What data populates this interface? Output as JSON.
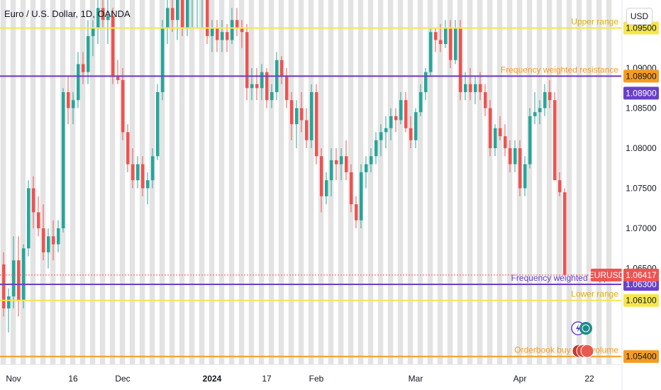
{
  "symbol": "Euro / U.S. Dollar, 1D, OANDA",
  "currency": "USD",
  "colors": {
    "up": "#26a69a",
    "down": "#ef5350",
    "stripe": "#d9d9d9",
    "yellow_line": "#f6e64a",
    "orange_line": "#f59b20",
    "purple_line": "#6a3fc9"
  },
  "chart_data": {
    "type": "candlestick",
    "y_axis": {
      "ylim": [
        1.053,
        1.0985
      ],
      "ticks": [
        "1.06500",
        "1.07000",
        "1.07500",
        "1.08000",
        "1.08500",
        "1.09000",
        "1.09500"
      ]
    },
    "x_axis": {
      "tick_labels": [
        {
          "label": "Nov",
          "index": 2
        },
        {
          "label": "16",
          "index": 14
        },
        {
          "label": "Dec",
          "index": 24
        },
        {
          "label": "2024",
          "index": 42
        },
        {
          "label": "17",
          "index": 53
        },
        {
          "label": "Feb",
          "index": 63
        },
        {
          "label": "Mar",
          "index": 83
        },
        {
          "label": "Apr",
          "index": 104
        },
        {
          "label": "22",
          "index": 118
        }
      ]
    },
    "levels": [
      {
        "name": "Upper range",
        "value": 1.095,
        "color": "#f6e64a",
        "badge": "1.09500",
        "label": "Upper range"
      },
      {
        "name": "Frequency weighted resistance",
        "value": 1.089,
        "color": "#f59b20",
        "badge": "1.08900",
        "label": "Frequency weighted resistance"
      },
      {
        "name": "Frequency weighted resistance",
        "value": 1.089,
        "color": "#6a3fc9",
        "badge": "1.08900",
        "label": ""
      },
      {
        "name": "Frequency weighted support",
        "value": 1.063,
        "color": "#6a3fc9",
        "badge": "1.06300",
        "label": "Frequency weighted support"
      },
      {
        "name": "Lower range",
        "value": 1.061,
        "color": "#f6e64a",
        "badge": "1.06100",
        "label": "Lower range"
      },
      {
        "name": "Orderbook buy side volume",
        "value": 1.054,
        "color": "#f59b20",
        "badge": "1.05400",
        "label": "Orderbook buy side volume"
      }
    ],
    "price": {
      "label": "EURUSD",
      "value": "1.06417",
      "numeric": 1.06417
    },
    "ohlc": [
      [
        1.0655,
        1.067,
        1.059,
        1.06
      ],
      [
        1.06,
        1.0625,
        1.057,
        1.0615
      ],
      [
        1.0615,
        1.069,
        1.06,
        1.066
      ],
      [
        1.066,
        1.069,
        1.059,
        1.061
      ],
      [
        1.061,
        1.068,
        1.06,
        1.0675
      ],
      [
        1.0675,
        1.076,
        1.0665,
        1.075
      ],
      [
        1.075,
        1.0765,
        1.07,
        1.072
      ],
      [
        1.072,
        1.074,
        1.069,
        1.07
      ],
      [
        1.07,
        1.073,
        1.066,
        1.067
      ],
      [
        1.067,
        1.07,
        1.065,
        1.069
      ],
      [
        1.069,
        1.071,
        1.066,
        1.068
      ],
      [
        1.068,
        1.071,
        1.067,
        1.07
      ],
      [
        1.07,
        1.0875,
        1.0695,
        1.087
      ],
      [
        1.087,
        1.089,
        1.083,
        1.085
      ],
      [
        1.085,
        1.087,
        1.083,
        1.086
      ],
      [
        1.086,
        1.092,
        1.085,
        1.0905
      ],
      [
        1.0905,
        1.092,
        1.088,
        1.0895
      ],
      [
        1.0895,
        1.096,
        1.088,
        1.094
      ],
      [
        1.094,
        1.096,
        1.0915,
        1.095
      ],
      [
        1.095,
        1.0985,
        1.093,
        1.0975
      ],
      [
        1.0975,
        1.099,
        1.095,
        1.096
      ],
      [
        1.096,
        1.0985,
        1.093,
        1.0965
      ],
      [
        1.0965,
        1.0975,
        1.088,
        1.089
      ],
      [
        1.089,
        1.091,
        1.088,
        1.0885
      ],
      [
        1.0885,
        1.09,
        1.081,
        1.082
      ],
      [
        1.082,
        1.083,
        1.077,
        1.078
      ],
      [
        1.078,
        1.08,
        1.075,
        1.076
      ],
      [
        1.076,
        1.079,
        1.075,
        1.078
      ],
      [
        1.078,
        1.079,
        1.074,
        1.075
      ],
      [
        1.075,
        1.077,
        1.073,
        1.076
      ],
      [
        1.076,
        1.08,
        1.075,
        1.079
      ],
      [
        1.079,
        1.088,
        1.0785,
        1.087
      ],
      [
        1.087,
        1.096,
        1.086,
        1.095
      ],
      [
        1.095,
        1.099,
        1.093,
        1.0975
      ],
      [
        1.0975,
        1.099,
        1.0945,
        1.096
      ],
      [
        1.096,
        1.0995,
        1.0935,
        1.0985
      ],
      [
        1.0985,
        1.0995,
        1.094,
        1.095
      ],
      [
        1.095,
        1.099,
        1.094,
        1.0985
      ],
      [
        1.0985,
        1.0995,
        1.095,
        1.099
      ],
      [
        1.099,
        1.0995,
        1.095,
        1.099
      ],
      [
        1.099,
        1.0995,
        1.095,
        1.099
      ],
      [
        1.099,
        1.0995,
        1.093,
        1.094
      ],
      [
        1.094,
        1.096,
        1.092,
        1.095
      ],
      [
        1.095,
        1.096,
        1.092,
        1.0935
      ],
      [
        1.0935,
        1.096,
        1.092,
        1.0945
      ],
      [
        1.0945,
        1.0955,
        1.092,
        1.0935
      ],
      [
        1.0935,
        1.0975,
        1.093,
        1.096
      ],
      [
        1.096,
        1.0975,
        1.094,
        1.095
      ],
      [
        1.095,
        1.096,
        1.0925,
        1.0945
      ],
      [
        1.0945,
        1.0955,
        1.086,
        1.0875
      ],
      [
        1.0875,
        1.09,
        1.086,
        1.088
      ],
      [
        1.088,
        1.09,
        1.086,
        1.0875
      ],
      [
        1.0875,
        1.0905,
        1.086,
        1.0895
      ],
      [
        1.0895,
        1.09,
        1.085,
        1.086
      ],
      [
        1.086,
        1.088,
        1.085,
        1.087
      ],
      [
        1.087,
        1.092,
        1.086,
        1.091
      ],
      [
        1.091,
        1.0915,
        1.088,
        1.089
      ],
      [
        1.089,
        1.09,
        1.085,
        1.086
      ],
      [
        1.086,
        1.087,
        1.081,
        1.083
      ],
      [
        1.083,
        1.086,
        1.08,
        1.085
      ],
      [
        1.085,
        1.087,
        1.082,
        1.0835
      ],
      [
        1.0835,
        1.085,
        1.08,
        1.081
      ],
      [
        1.081,
        1.088,
        1.08,
        1.087
      ],
      [
        1.087,
        1.088,
        1.078,
        1.079
      ],
      [
        1.079,
        1.08,
        1.072,
        1.074
      ],
      [
        1.074,
        1.077,
        1.073,
        1.076
      ],
      [
        1.076,
        1.08,
        1.074,
        1.0785
      ],
      [
        1.0785,
        1.08,
        1.076,
        1.078
      ],
      [
        1.078,
        1.08,
        1.076,
        1.079
      ],
      [
        1.079,
        1.081,
        1.076,
        1.077
      ],
      [
        1.077,
        1.078,
        1.072,
        1.073
      ],
      [
        1.073,
        1.074,
        1.07,
        1.071
      ],
      [
        1.071,
        1.078,
        1.07,
        1.077
      ],
      [
        1.077,
        1.079,
        1.075,
        1.078
      ],
      [
        1.078,
        1.08,
        1.077,
        1.079
      ],
      [
        1.079,
        1.082,
        1.078,
        1.081
      ],
      [
        1.081,
        1.083,
        1.079,
        1.082
      ],
      [
        1.082,
        1.084,
        1.08,
        1.0825
      ],
      [
        1.0825,
        1.085,
        1.081,
        1.084
      ],
      [
        1.084,
        1.085,
        1.082,
        1.0835
      ],
      [
        1.0835,
        1.087,
        1.083,
        1.086
      ],
      [
        1.086,
        1.087,
        1.082,
        1.0825
      ],
      [
        1.0825,
        1.084,
        1.08,
        1.081
      ],
      [
        1.081,
        1.085,
        1.08,
        1.0845
      ],
      [
        1.0845,
        1.088,
        1.084,
        1.087
      ],
      [
        1.087,
        1.09,
        1.086,
        1.0895
      ],
      [
        1.0895,
        1.095,
        1.089,
        1.0945
      ],
      [
        1.0945,
        1.095,
        1.092,
        1.0935
      ],
      [
        1.0935,
        1.0955,
        1.092,
        1.093
      ],
      [
        1.093,
        1.096,
        1.0925,
        1.095
      ],
      [
        1.095,
        1.096,
        1.09,
        1.091
      ],
      [
        1.091,
        1.096,
        1.0905,
        1.095
      ],
      [
        1.095,
        1.096,
        1.086,
        1.087
      ],
      [
        1.087,
        1.0895,
        1.086,
        1.088
      ],
      [
        1.088,
        1.09,
        1.086,
        1.087
      ],
      [
        1.087,
        1.089,
        1.0855,
        1.088
      ],
      [
        1.088,
        1.0895,
        1.086,
        1.087
      ],
      [
        1.087,
        1.088,
        1.084,
        1.085
      ],
      [
        1.085,
        1.086,
        1.079,
        1.08
      ],
      [
        1.08,
        1.083,
        1.079,
        1.0825
      ],
      [
        1.0825,
        1.084,
        1.081,
        1.0815
      ],
      [
        1.0815,
        1.083,
        1.079,
        1.08
      ],
      [
        1.08,
        1.081,
        1.077,
        1.078
      ],
      [
        1.078,
        1.081,
        1.077,
        1.08
      ],
      [
        1.08,
        1.081,
        1.074,
        1.075
      ],
      [
        1.075,
        1.079,
        1.074,
        1.078
      ],
      [
        1.078,
        1.085,
        1.0775,
        1.084
      ],
      [
        1.084,
        1.087,
        1.083,
        1.0845
      ],
      [
        1.0845,
        1.086,
        1.083,
        1.085
      ],
      [
        1.085,
        1.088,
        1.084,
        1.087
      ],
      [
        1.087,
        1.0885,
        1.085,
        1.086
      ],
      [
        1.086,
        1.087,
        1.076,
        1.076
      ],
      [
        1.076,
        1.077,
        1.074,
        1.0745
      ],
      [
        1.0745,
        1.075,
        1.064,
        1.0642
      ]
    ]
  }
}
